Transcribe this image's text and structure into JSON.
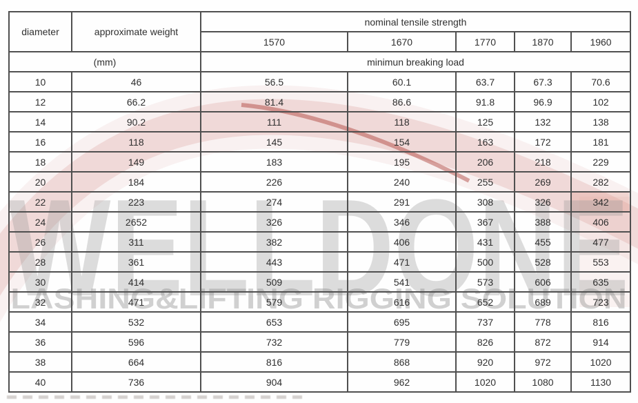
{
  "table": {
    "col_diameter": "diameter",
    "col_weight": "approximate weight",
    "col_tensile": "nominal tensile strength",
    "strengths": [
      "1570",
      "1670",
      "1770",
      "1870",
      "1960"
    ],
    "unit_label": "(mm)",
    "breaking_label": "minimun breaking load",
    "border_color": "#4f4f4f",
    "text_color": "#2f2f2f",
    "rows": [
      [
        "10",
        "46",
        "56.5",
        "60.1",
        "63.7",
        "67.3",
        "70.6"
      ],
      [
        "12",
        "66.2",
        "81.4",
        "86.6",
        "91.8",
        "96.9",
        "102"
      ],
      [
        "14",
        "90.2",
        "111",
        "118",
        "125",
        "132",
        "138"
      ],
      [
        "16",
        "118",
        "145",
        "154",
        "163",
        "172",
        "181"
      ],
      [
        "18",
        "149",
        "183",
        "195",
        "206",
        "218",
        "229"
      ],
      [
        "20",
        "184",
        "226",
        "240",
        "255",
        "269",
        "282"
      ],
      [
        "22",
        "223",
        "274",
        "291",
        "308",
        "326",
        "342"
      ],
      [
        "24",
        "2652",
        "326",
        "346",
        "367",
        "388",
        "406"
      ],
      [
        "26",
        "311",
        "382",
        "406",
        "431",
        "455",
        "477"
      ],
      [
        "28",
        "361",
        "443",
        "471",
        "500",
        "528",
        "553"
      ],
      [
        "30",
        "414",
        "509",
        "541",
        "573",
        "606",
        "635"
      ],
      [
        "32",
        "471",
        "579",
        "616",
        "652",
        "689",
        "723"
      ],
      [
        "34",
        "532",
        "653",
        "695",
        "737",
        "778",
        "816"
      ],
      [
        "36",
        "596",
        "732",
        "779",
        "826",
        "872",
        "914"
      ],
      [
        "38",
        "664",
        "816",
        "868",
        "920",
        "972",
        "1020"
      ],
      [
        "40",
        "736",
        "904",
        "962",
        "1020",
        "1080",
        "1130"
      ]
    ]
  },
  "watermark": {
    "brand": "WELLDONE",
    "tagline": "LASHING&LIFTING RIGGING SOLUTION",
    "letter_color": "#dedede",
    "tagline_color": "#d2d2d2",
    "accent_color": "#b94a3c"
  }
}
